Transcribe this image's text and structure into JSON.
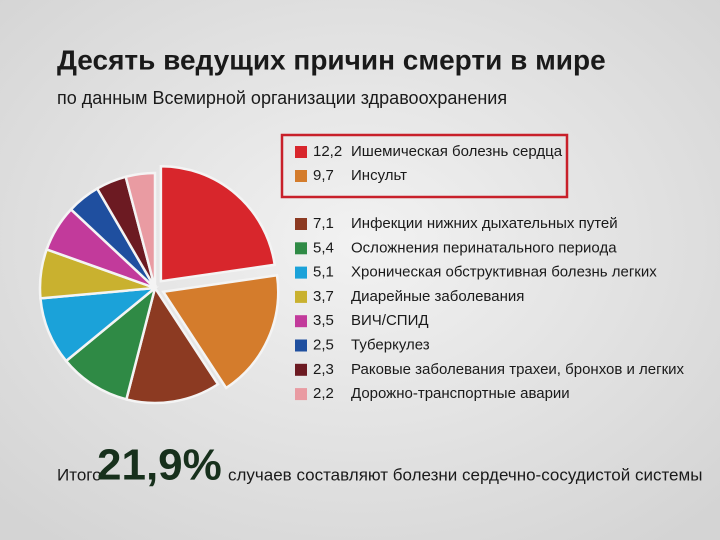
{
  "chart_data": {
    "type": "pie",
    "title": "Десять ведущих причин смерти в мире",
    "subtitle": "по данным Всемирной организации здравоохранения",
    "categories": [
      "Ишемическая болезнь сердца",
      "Инсульт",
      "Инфекции нижних дыхательных путей",
      "Осложнения перинатального периода",
      "Хроническая обструктивная болезнь легких",
      "Диарейные заболевания",
      "ВИЧ/СПИД",
      "Туберкулез",
      "Раковые заболевания трахеи, бронхов и легких",
      "Дорожно-транспортные аварии"
    ],
    "values": [
      12.2,
      9.7,
      7.1,
      5.4,
      5.1,
      3.7,
      3.5,
      2.5,
      2.3,
      2.2
    ],
    "value_labels": [
      "12,2",
      "9,7",
      "7,1",
      "5,4",
      "5,1",
      "3,7",
      "3,5",
      "2,5",
      "2,3",
      "2,2"
    ],
    "colors": [
      "#d8262c",
      "#d47c2c",
      "#8c3a22",
      "#2f8a45",
      "#1ba2d9",
      "#c9b12f",
      "#c23a9b",
      "#1f4f9f",
      "#6c1a22",
      "#e99ba2"
    ],
    "explode": [
      true,
      true,
      false,
      false,
      false,
      false,
      false,
      false,
      false,
      false
    ],
    "footer": {
      "prefix": "Итого",
      "highlight": "21,9%",
      "suffix": "случаев составляют болезни сердечно-сосудистой системы"
    }
  }
}
